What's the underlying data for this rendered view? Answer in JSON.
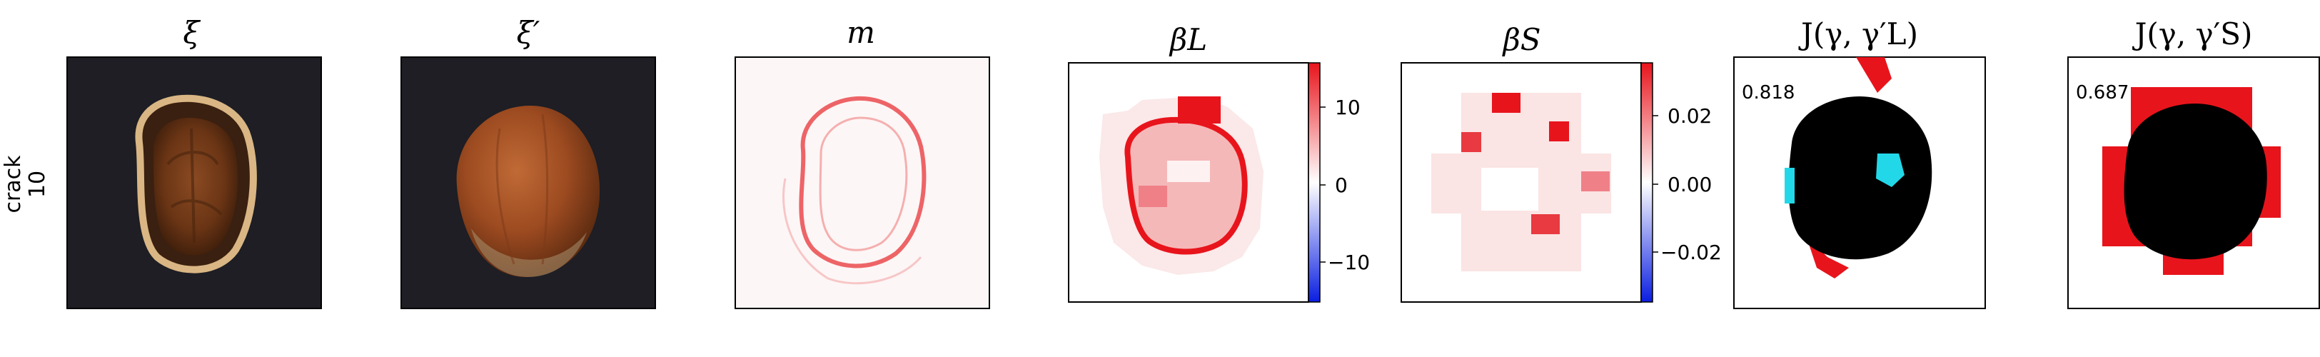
{
  "row_label": {
    "line1": "crack",
    "line2": "10"
  },
  "panels": [
    {
      "title": "ξ"
    },
    {
      "title": "ξ′"
    },
    {
      "title": "m"
    },
    {
      "title": "βL"
    },
    {
      "title": "βS"
    },
    {
      "title": "J(γ, γ′L)"
    },
    {
      "title": "J(γ, γ′S)"
    }
  ],
  "colorbar_L": {
    "ticks": [
      "10",
      "0",
      "−10"
    ],
    "range": [
      -15,
      15
    ]
  },
  "colorbar_S": {
    "ticks": [
      "0.02",
      "0.00",
      "−0.02"
    ],
    "range": [
      -0.035,
      0.035
    ]
  },
  "scores": {
    "L": "0.818",
    "S": "0.687"
  },
  "colors": {
    "positive": "#e8141c",
    "negative": "#0a1ee0",
    "overlay_cyan": "#22d8e8",
    "mask": "#000000"
  }
}
